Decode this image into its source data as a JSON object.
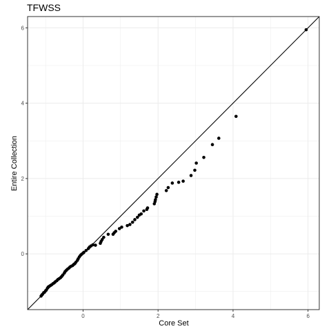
{
  "chart_data": {
    "type": "scatter",
    "title": "TFWSS",
    "xlabel": "Core Set",
    "ylabel": "Entire Collection",
    "xlim": [
      -1.48,
      6.3
    ],
    "ylim": [
      -1.48,
      6.3
    ],
    "x_ticks": [
      0,
      2,
      4,
      6
    ],
    "y_ticks": [
      0,
      2,
      4,
      6
    ],
    "grid": true,
    "reference_line": {
      "type": "identity",
      "slope": 1,
      "intercept": 0
    },
    "colors": {
      "points": "#000000",
      "line": "#000000",
      "grid": "#ebebeb",
      "border": "#333333"
    },
    "points": [
      [
        -1.12,
        -1.12
      ],
      [
        -1.1,
        -1.09
      ],
      [
        -1.08,
        -1.07
      ],
      [
        -1.05,
        -1.03
      ],
      [
        -1.03,
        -1.02
      ],
      [
        -1.0,
        -0.98
      ],
      [
        -0.98,
        -0.96
      ],
      [
        -0.95,
        -0.91
      ],
      [
        -0.93,
        -0.88
      ],
      [
        -0.9,
        -0.86
      ],
      [
        -0.87,
        -0.84
      ],
      [
        -0.84,
        -0.82
      ],
      [
        -0.8,
        -0.79
      ],
      [
        -0.77,
        -0.77
      ],
      [
        -0.74,
        -0.74
      ],
      [
        -0.7,
        -0.71
      ],
      [
        -0.67,
        -0.68
      ],
      [
        -0.64,
        -0.66
      ],
      [
        -0.6,
        -0.63
      ],
      [
        -0.57,
        -0.6
      ],
      [
        -0.54,
        -0.56
      ],
      [
        -0.5,
        -0.51
      ],
      [
        -0.48,
        -0.47
      ],
      [
        -0.45,
        -0.44
      ],
      [
        -0.42,
        -0.41
      ],
      [
        -0.38,
        -0.38
      ],
      [
        -0.35,
        -0.35
      ],
      [
        -0.32,
        -0.33
      ],
      [
        -0.28,
        -0.31
      ],
      [
        -0.25,
        -0.28
      ],
      [
        -0.22,
        -0.26
      ],
      [
        -0.19,
        -0.22
      ],
      [
        -0.15,
        -0.17
      ],
      [
        -0.13,
        -0.13
      ],
      [
        -0.1,
        -0.08
      ],
      [
        -0.07,
        -0.04
      ],
      [
        -0.04,
        -0.01
      ],
      [
        0.0,
        0.02
      ],
      [
        0.02,
        0.04
      ],
      [
        0.08,
        0.09
      ],
      [
        0.14,
        0.14
      ],
      [
        0.17,
        0.18
      ],
      [
        0.21,
        0.21
      ],
      [
        0.26,
        0.24
      ],
      [
        0.33,
        0.23
      ],
      [
        0.46,
        0.28
      ],
      [
        0.48,
        0.33
      ],
      [
        0.51,
        0.38
      ],
      [
        0.55,
        0.44
      ],
      [
        0.67,
        0.52
      ],
      [
        0.8,
        0.52
      ],
      [
        0.83,
        0.56
      ],
      [
        0.87,
        0.6
      ],
      [
        0.97,
        0.67
      ],
      [
        1.03,
        0.71
      ],
      [
        1.18,
        0.75
      ],
      [
        1.25,
        0.78
      ],
      [
        1.32,
        0.84
      ],
      [
        1.38,
        0.91
      ],
      [
        1.45,
        0.97
      ],
      [
        1.5,
        1.03
      ],
      [
        1.55,
        1.06
      ],
      [
        1.62,
        1.14
      ],
      [
        1.7,
        1.18
      ],
      [
        1.72,
        1.22
      ],
      [
        1.9,
        1.33
      ],
      [
        1.92,
        1.39
      ],
      [
        1.93,
        1.44
      ],
      [
        1.95,
        1.51
      ],
      [
        1.97,
        1.58
      ],
      [
        2.22,
        1.68
      ],
      [
        2.27,
        1.76
      ],
      [
        2.38,
        1.88
      ],
      [
        2.55,
        1.9
      ],
      [
        2.67,
        1.93
      ],
      [
        2.88,
        2.08
      ],
      [
        2.98,
        2.22
      ],
      [
        3.02,
        2.41
      ],
      [
        3.22,
        2.56
      ],
      [
        3.45,
        2.9
      ],
      [
        3.62,
        3.07
      ],
      [
        4.08,
        3.65
      ],
      [
        5.95,
        5.95
      ]
    ]
  }
}
